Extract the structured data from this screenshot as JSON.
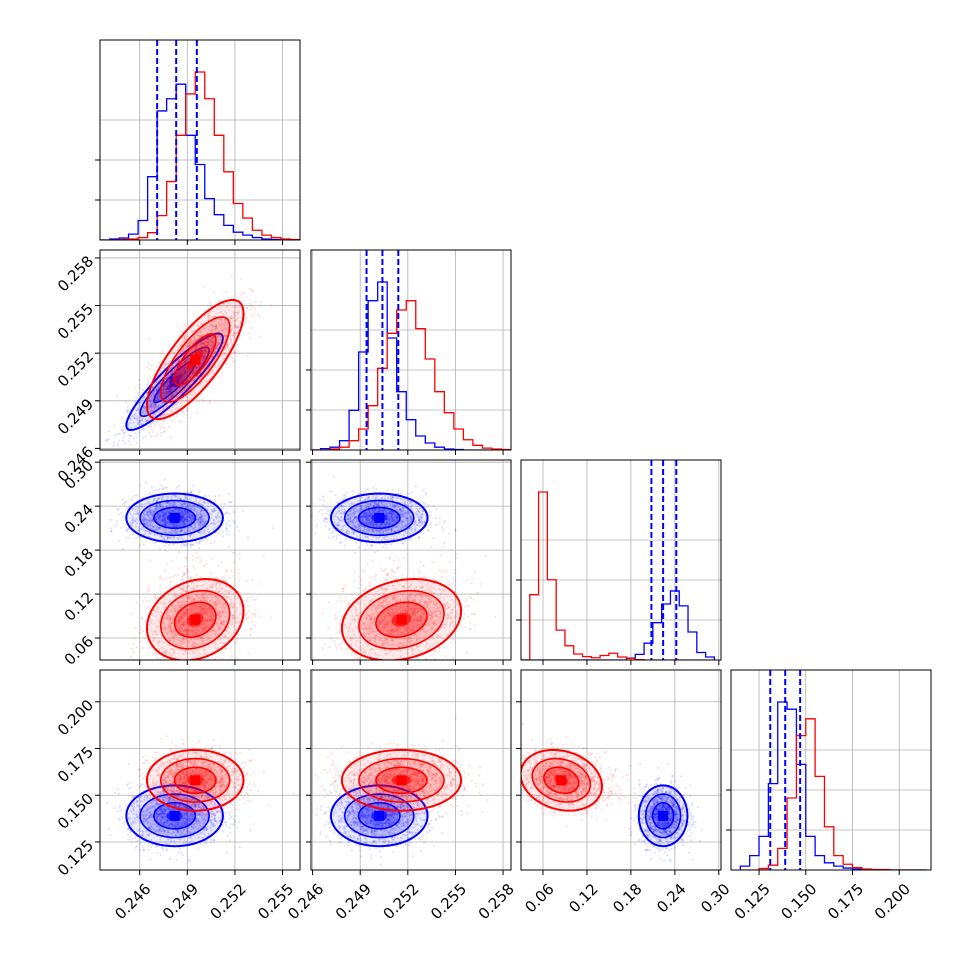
{
  "chart_data": {
    "type": "corner",
    "series": [
      {
        "name": "",
        "color": "#0000ff",
        "quantiles": [
          [
            0.2471,
            0.2483,
            0.2496
          ],
          [
            0.2494,
            0.2504,
            0.2514
          ],
          [
            0.208,
            0.224,
            0.242
          ],
          [
            0.131,
            0.139,
            0.147
          ]
        ],
        "mean": [
          0.2482,
          0.2502,
          0.224,
          0.139
        ],
        "cov": [
          [
            2.1e-06,
            1.9e-06,
            0.0,
            0.0
          ],
          [
            1.9e-06,
            2.1e-06,
            0.0,
            0.0
          ],
          [
            0.0,
            0.0,
            0.00025,
            0.0
          ],
          [
            0.0,
            0.0,
            0.0,
            6e-05
          ]
        ]
      },
      {
        "name": "",
        "color": "#ff0000",
        "mean": [
          0.2495,
          0.2516,
          0.085,
          0.158
        ],
        "cov": [
          [
            2.1e-06,
            2e-06,
            8e-06,
            0.0
          ],
          [
            2e-06,
            3.2e-06,
            1e-05,
            0.0
          ],
          [
            8e-06,
            1e-05,
            0.0007,
            -4e-05
          ],
          [
            0.0,
            0.0,
            -4e-05,
            6e-05
          ]
        ]
      }
    ],
    "histograms": [
      {
        "bins": [
          0.2435,
          0.2441,
          0.2447,
          0.2453,
          0.2459,
          0.2465,
          0.2471,
          0.2477,
          0.2483,
          0.2489,
          0.2495,
          0.2501,
          0.2507,
          0.2513,
          0.2519,
          0.2525,
          0.2531,
          0.2537,
          0.2543,
          0.2549,
          0.2555,
          0.2561
        ],
        "blue": [
          0,
          2,
          4,
          12,
          40,
          130,
          265,
          290,
          320,
          215,
          155,
          85,
          52,
          30,
          16,
          10,
          5,
          2,
          1,
          0,
          0
        ],
        "red": [
          0,
          0,
          1,
          2,
          5,
          15,
          50,
          120,
          215,
          300,
          345,
          290,
          215,
          140,
          75,
          45,
          20,
          10,
          5,
          2,
          1
        ]
      },
      {
        "bins": [
          0.2459,
          0.2465,
          0.2471,
          0.2477,
          0.2483,
          0.2489,
          0.2495,
          0.2501,
          0.2507,
          0.2513,
          0.2519,
          0.2525,
          0.2531,
          0.2537,
          0.2543,
          0.2549,
          0.2555,
          0.2561,
          0.2567,
          0.2573,
          0.2579,
          0.2585
        ],
        "blue": [
          0,
          3,
          6,
          20,
          85,
          210,
          320,
          360,
          240,
          125,
          65,
          30,
          15,
          6,
          2,
          1,
          0,
          0,
          0,
          0,
          0
        ],
        "red": [
          0,
          0,
          2,
          6,
          20,
          45,
          95,
          175,
          250,
          300,
          320,
          260,
          195,
          125,
          80,
          45,
          22,
          10,
          4,
          2,
          1
        ]
      },
      {
        "bins": [
          0.03,
          0.042,
          0.054,
          0.066,
          0.078,
          0.09,
          0.102,
          0.114,
          0.126,
          0.138,
          0.15,
          0.162,
          0.174,
          0.186,
          0.198,
          0.21,
          0.222,
          0.234,
          0.246,
          0.258,
          0.27,
          0.282,
          0.294
        ],
        "blue": [
          0,
          0,
          0,
          0,
          0,
          0,
          0,
          0,
          0,
          0,
          0,
          0,
          5,
          15,
          45,
          100,
          150,
          185,
          145,
          75,
          20,
          8
        ],
        "red": [
          0,
          175,
          450,
          215,
          80,
          38,
          16,
          9,
          6,
          12,
          18,
          8,
          4,
          1,
          0,
          0,
          0,
          0,
          0,
          0,
          0,
          0
        ]
      },
      {
        "bins": [
          0.115,
          0.12,
          0.125,
          0.13,
          0.135,
          0.14,
          0.145,
          0.15,
          0.155,
          0.16,
          0.165,
          0.17,
          0.175,
          0.18,
          0.185,
          0.19,
          0.195,
          0.2,
          0.205,
          0.21,
          0.215
        ],
        "blue": [
          8,
          30,
          70,
          180,
          350,
          335,
          220,
          70,
          30,
          15,
          8,
          4,
          2,
          1,
          0,
          0,
          0,
          0,
          0,
          0
        ],
        "red": [
          0,
          0,
          3,
          10,
          45,
          150,
          280,
          315,
          195,
          90,
          30,
          12,
          5,
          2,
          1,
          1,
          0,
          0,
          0,
          0
        ]
      }
    ],
    "axes": [
      {
        "range": [
          0.2435,
          0.2561
        ],
        "ticks": [
          0.246,
          0.249,
          0.252,
          0.255
        ],
        "tick_labels": [
          "0.246",
          "0.249",
          "0.252",
          "0.255"
        ]
      },
      {
        "range": [
          0.2459,
          0.2585
        ],
        "ticks": [
          0.246,
          0.249,
          0.252,
          0.255,
          0.258
        ],
        "tick_labels": [
          "0.246",
          "0.249",
          "0.252",
          "0.255",
          "0.258"
        ]
      },
      {
        "range": [
          0.03,
          0.303
        ],
        "ticks": [
          0.06,
          0.12,
          0.18,
          0.24,
          0.3
        ],
        "tick_labels": [
          "0.06",
          "0.12",
          "0.18",
          "0.24",
          "0.30"
        ]
      },
      {
        "range": [
          0.11,
          0.217
        ],
        "ticks": [
          0.125,
          0.15,
          0.175,
          0.2
        ],
        "tick_labels": [
          "0.125",
          "0.150",
          "0.175",
          "0.200"
        ]
      }
    ],
    "diag_grid_fractions": [
      0.25,
      0.5,
      0.75
    ],
    "grid": true
  }
}
